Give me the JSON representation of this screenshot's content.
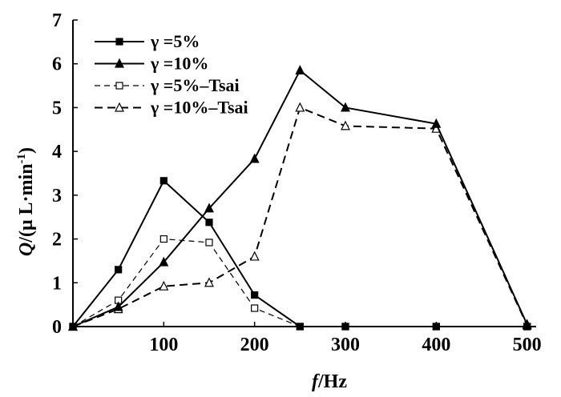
{
  "chart_data": {
    "type": "line",
    "xlabel_var": "f",
    "xlabel_unit": "/Hz",
    "ylabel_var": "Q",
    "ylabel_unit": "/(μ L·min",
    "ylabel_sup": "-1",
    "ylabel_close": ")",
    "xlim": [
      0,
      510
    ],
    "ylim": [
      0,
      7
    ],
    "x_ticks": [
      100,
      200,
      300,
      400,
      500
    ],
    "y_ticks": [
      0,
      1,
      2,
      3,
      4,
      5,
      6,
      7
    ],
    "grid": false,
    "legend_position": "top-left",
    "series": [
      {
        "name": "γ =5%",
        "line": "solid",
        "marker": "square-filled",
        "x": [
          0,
          50,
          100,
          150,
          200,
          250,
          300,
          400,
          500
        ],
        "y": [
          0,
          1.3,
          3.33,
          2.38,
          0.72,
          0,
          0,
          0,
          0
        ]
      },
      {
        "name": "γ =10%",
        "line": "solid",
        "marker": "triangle-filled",
        "x": [
          0,
          50,
          100,
          150,
          200,
          250,
          300,
          400,
          500
        ],
        "y": [
          0,
          0.45,
          1.47,
          2.7,
          3.83,
          5.85,
          5.0,
          4.63,
          0.05
        ]
      },
      {
        "name": "γ =5%–Tsai",
        "line": "dashed-light",
        "marker": "square-open",
        "x": [
          0,
          50,
          100,
          150,
          200,
          250,
          300,
          400,
          500
        ],
        "y": [
          0,
          0.6,
          2.0,
          1.92,
          0.42,
          0,
          0,
          0,
          0
        ]
      },
      {
        "name": "γ =10%–Tsai",
        "line": "dashed",
        "marker": "triangle-open",
        "x": [
          0,
          50,
          100,
          150,
          200,
          250,
          300,
          400,
          500
        ],
        "y": [
          0,
          0.4,
          0.92,
          1.0,
          1.6,
          5.0,
          4.58,
          4.52,
          0.03
        ]
      }
    ]
  }
}
